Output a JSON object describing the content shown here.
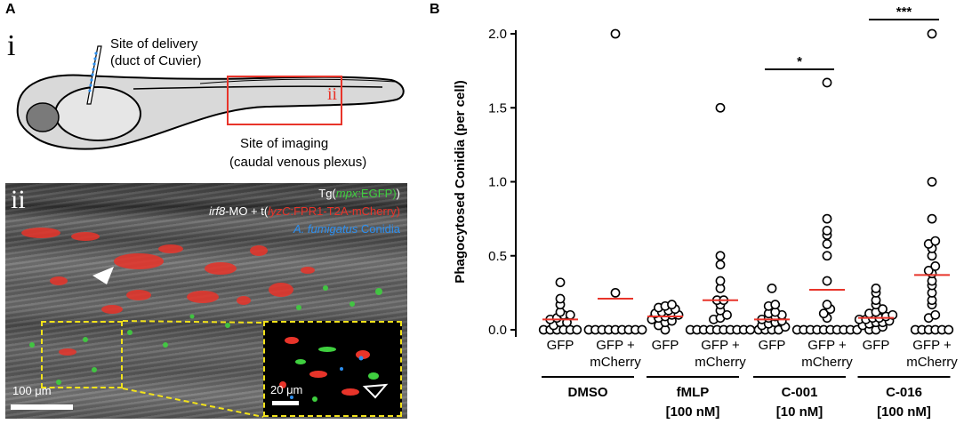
{
  "panel_a": {
    "letter": "A",
    "schematic": {
      "roman_i": "i",
      "roman_ii": "ii",
      "delivery_line1": "Site of delivery",
      "delivery_line2": "(duct of Cuvier)",
      "imaging_line1": "Site of imaging",
      "imaging_line2": "(caudal venous plexus)"
    },
    "micrograph": {
      "roman": "ii",
      "line1_a": "Tg(",
      "line1_b": "mpx",
      "line1_c": ":EGFP)",
      "line2_a": "irf8",
      "line2_b": "-MO + t(",
      "line2_c": "lyzC",
      "line2_d": ":FPR1-T2A-mCherry)",
      "line3_a": "A. fumigatus",
      "line3_b": " Conidia",
      "scale_main": "100 μm",
      "scale_inset": "20 μm"
    }
  },
  "panel_b": {
    "letter": "B"
  },
  "colors": {
    "green": "#3fcf3f",
    "red": "#e8342a",
    "blue": "#2c8ff0",
    "mean_line": "#e8342a",
    "dashed": "#f2e21a"
  },
  "chart_data": {
    "type": "scatter",
    "ylabel": "Phagocytosed Conidia (per cell)",
    "ylim": [
      0,
      2.0
    ],
    "yticks": [
      "0.0",
      "0.5",
      "1.0",
      "1.5",
      "2.0"
    ],
    "categories": [
      "GFP",
      "GFP +\nmCherry",
      "GFP",
      "GFP +\nmCherry",
      "GFP",
      "GFP +\nmCherry",
      "GFP",
      "GFP +\nmCherry"
    ],
    "groups": [
      {
        "label_line1": "DMSO",
        "label_line2": ""
      },
      {
        "label_line1": "fMLP",
        "label_line2": "[100 nM]"
      },
      {
        "label_line1": "C-001",
        "label_line2": "[10 nM]"
      },
      {
        "label_line1": "C-016",
        "label_line2": "[100 nM]"
      }
    ],
    "series": [
      {
        "means": [
          0.07,
          0.21,
          0.09,
          0.2,
          0.07,
          0.27,
          0.08,
          0.37
        ]
      }
    ],
    "points": [
      [
        0.0,
        0.0,
        0.0,
        0.0,
        0.0,
        0.0,
        0.03,
        0.05,
        0.05,
        0.07,
        0.08,
        0.1,
        0.1,
        0.12,
        0.17,
        0.21,
        0.32
      ],
      [
        0.0,
        0.0,
        0.0,
        0.0,
        0.0,
        0.0,
        0.0,
        0.0,
        0.0,
        0.25,
        2.0
      ],
      [
        0.0,
        0.03,
        0.05,
        0.06,
        0.07,
        0.08,
        0.09,
        0.1,
        0.1,
        0.11,
        0.12,
        0.13,
        0.14,
        0.15,
        0.16,
        0.17
      ],
      [
        0.0,
        0.0,
        0.0,
        0.0,
        0.0,
        0.0,
        0.0,
        0.0,
        0.0,
        0.0,
        0.07,
        0.08,
        0.1,
        0.13,
        0.17,
        0.2,
        0.2,
        0.28,
        0.33,
        0.44,
        0.5,
        1.5
      ],
      [
        0.0,
        0.0,
        0.0,
        0.0,
        0.02,
        0.03,
        0.04,
        0.05,
        0.06,
        0.07,
        0.08,
        0.09,
        0.1,
        0.11,
        0.12,
        0.16,
        0.17,
        0.28
      ],
      [
        0.0,
        0.0,
        0.0,
        0.0,
        0.0,
        0.0,
        0.0,
        0.0,
        0.0,
        0.0,
        0.08,
        0.11,
        0.14,
        0.17,
        0.33,
        0.5,
        0.58,
        0.64,
        0.67,
        0.75,
        1.67
      ],
      [
        0.0,
        0.0,
        0.02,
        0.03,
        0.04,
        0.05,
        0.05,
        0.06,
        0.07,
        0.07,
        0.08,
        0.08,
        0.09,
        0.1,
        0.11,
        0.12,
        0.14,
        0.17,
        0.2,
        0.25,
        0.28
      ],
      [
        0.0,
        0.0,
        0.0,
        0.0,
        0.0,
        0.0,
        0.08,
        0.1,
        0.17,
        0.2,
        0.25,
        0.3,
        0.33,
        0.38,
        0.4,
        0.43,
        0.5,
        0.55,
        0.58,
        0.6,
        0.75,
        1.0,
        2.0
      ]
    ],
    "significance": [
      {
        "pair": [
          4,
          5
        ],
        "label": "*",
        "level": 1.75
      },
      {
        "pair": [
          6,
          7
        ],
        "label": "***",
        "level": 2.1
      }
    ],
    "grid": false
  }
}
